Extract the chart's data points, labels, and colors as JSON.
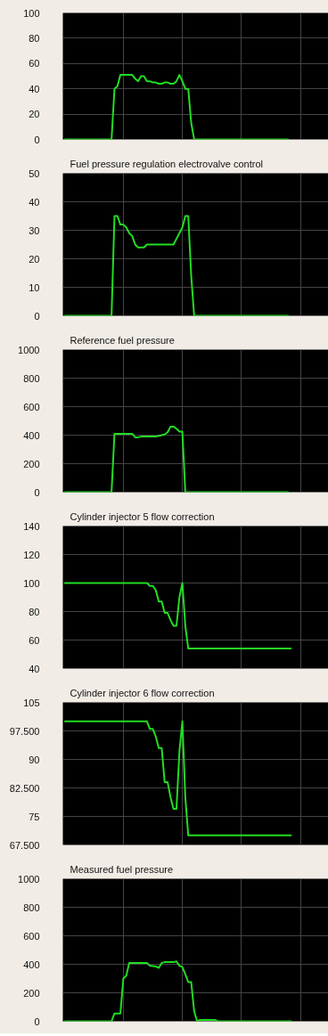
{
  "chart_data": [
    {
      "type": "line",
      "categories": [
        null,
        null,
        null,
        null,
        null,
        null,
        null,
        null,
        null,
        null,
        null,
        null,
        null,
        null,
        null,
        null,
        null,
        null,
        null,
        null,
        null,
        null,
        null,
        null,
        null,
        null,
        null,
        null,
        null,
        null,
        null,
        null,
        null,
        null,
        null,
        null,
        null,
        null,
        null,
        null,
        null,
        null,
        null,
        null,
        null,
        null,
        null,
        null,
        null,
        null,
        null,
        null,
        null,
        null,
        null,
        null,
        null,
        null,
        null,
        null,
        null,
        null,
        null,
        null,
        null,
        null,
        null,
        null,
        null,
        null,
        null,
        null,
        null,
        null,
        null,
        null,
        null,
        null,
        null,
        null,
        null,
        null,
        null,
        null,
        null,
        null,
        null,
        null,
        null,
        null
      ],
      "series": [
        {
          "color": "#22dd22",
          "values": [
            0,
            0,
            0,
            0,
            0,
            0,
            0,
            0,
            0,
            0,
            0,
            0,
            0,
            0,
            0,
            0,
            0,
            40,
            42,
            51,
            51,
            51,
            51,
            51,
            48,
            46,
            50,
            50,
            46,
            46,
            45,
            45,
            44,
            44,
            45,
            45,
            44,
            44,
            46,
            51,
            46,
            40,
            40,
            13,
            0,
            0,
            0,
            0,
            0,
            0,
            0,
            0,
            0,
            0,
            0,
            0,
            0,
            0,
            0,
            0,
            0,
            0,
            0,
            0,
            0,
            0,
            0,
            0,
            0,
            0,
            0,
            0,
            0,
            0,
            0,
            0,
            0,
            null,
            null,
            null,
            null,
            null,
            null,
            null,
            null,
            null,
            null,
            null,
            null,
            null
          ]
        }
      ],
      "ylim": [
        0,
        100
      ],
      "yticks": [
        0,
        20,
        40,
        60,
        80,
        100
      ],
      "grid": true,
      "tick_labels": "y",
      "marker": "none",
      "line_style": "solid"
    },
    {
      "type": "line",
      "title": "Fuel pressure regulation electrovalve control",
      "categories": [
        null,
        null,
        null,
        null,
        null,
        null,
        null,
        null,
        null,
        null,
        null,
        null,
        null,
        null,
        null,
        null,
        null,
        null,
        null,
        null,
        null,
        null,
        null,
        null,
        null,
        null,
        null,
        null,
        null,
        null,
        null,
        null,
        null,
        null,
        null,
        null,
        null,
        null,
        null,
        null,
        null,
        null,
        null,
        null,
        null,
        null,
        null,
        null,
        null,
        null,
        null,
        null,
        null,
        null,
        null,
        null,
        null,
        null,
        null,
        null,
        null,
        null,
        null,
        null,
        null,
        null,
        null,
        null,
        null,
        null,
        null,
        null,
        null,
        null,
        null,
        null,
        null,
        null,
        null,
        null,
        null,
        null,
        null,
        null,
        null,
        null,
        null,
        null,
        null,
        null
      ],
      "series": [
        {
          "color": "#22dd22",
          "values": [
            0,
            0,
            0,
            0,
            0,
            0,
            0,
            0,
            0,
            0,
            0,
            0,
            0,
            0,
            0,
            0,
            0,
            35,
            35,
            32,
            32,
            31,
            29,
            28,
            25,
            24,
            24,
            24,
            25,
            25,
            25,
            25,
            25,
            25,
            25,
            25,
            25,
            25,
            27,
            29,
            31,
            35,
            35,
            14,
            0,
            0,
            0,
            0,
            0,
            0,
            0,
            0,
            0,
            0,
            0,
            0,
            0,
            0,
            0,
            0,
            0,
            0,
            0,
            0,
            0,
            0,
            0,
            0,
            0,
            0,
            0,
            0,
            0,
            0,
            0,
            0,
            0,
            null,
            null,
            null,
            null,
            null,
            null,
            null,
            null,
            null,
            null,
            null,
            null,
            null
          ]
        }
      ],
      "ylim": [
        0,
        50
      ],
      "yticks": [
        0,
        10,
        20,
        30,
        40,
        50
      ],
      "grid": true,
      "tick_labels": "y",
      "marker": "none",
      "line_style": "solid"
    },
    {
      "type": "line",
      "title": "Reference fuel pressure",
      "categories": [
        null,
        null,
        null,
        null,
        null,
        null,
        null,
        null,
        null,
        null,
        null,
        null,
        null,
        null,
        null,
        null,
        null,
        null,
        null,
        null,
        null,
        null,
        null,
        null,
        null,
        null,
        null,
        null,
        null,
        null,
        null,
        null,
        null,
        null,
        null,
        null,
        null,
        null,
        null,
        null,
        null,
        null,
        null,
        null,
        null,
        null,
        null,
        null,
        null,
        null,
        null,
        null,
        null,
        null,
        null,
        null,
        null,
        null,
        null,
        null,
        null,
        null,
        null,
        null,
        null,
        null,
        null,
        null,
        null,
        null,
        null,
        null,
        null,
        null,
        null,
        null,
        null,
        null,
        null,
        null,
        null,
        null,
        null,
        null,
        null,
        null,
        null,
        null,
        null,
        null
      ],
      "series": [
        {
          "color": "#22dd22",
          "values": [
            0,
            0,
            0,
            0,
            0,
            0,
            0,
            0,
            0,
            0,
            0,
            0,
            0,
            0,
            0,
            0,
            0,
            410,
            410,
            410,
            410,
            410,
            410,
            410,
            385,
            385,
            390,
            390,
            390,
            390,
            390,
            390,
            395,
            400,
            405,
            420,
            460,
            460,
            445,
            425,
            425,
            0,
            0,
            0,
            0,
            0,
            0,
            0,
            0,
            0,
            0,
            0,
            0,
            0,
            0,
            0,
            0,
            0,
            0,
            0,
            0,
            0,
            0,
            0,
            0,
            0,
            0,
            0,
            0,
            0,
            0,
            0,
            0,
            0,
            0,
            0,
            0,
            null,
            null,
            null,
            null,
            null,
            null,
            null,
            null,
            null,
            null,
            null,
            null,
            null
          ]
        }
      ],
      "ylim": [
        0,
        1000
      ],
      "yticks": [
        0,
        200,
        400,
        600,
        800,
        1000
      ],
      "grid": true,
      "tick_labels": "y",
      "marker": "none",
      "line_style": "solid"
    },
    {
      "type": "line",
      "title": "Cylinder injector 5 flow correction",
      "categories": [
        null,
        null,
        null,
        null,
        null,
        null,
        null,
        null,
        null,
        null,
        null,
        null,
        null,
        null,
        null,
        null,
        null,
        null,
        null,
        null,
        null,
        null,
        null,
        null,
        null,
        null,
        null,
        null,
        null,
        null,
        null,
        null,
        null,
        null,
        null,
        null,
        null,
        null,
        null,
        null,
        null,
        null,
        null,
        null,
        null,
        null,
        null,
        null,
        null,
        null,
        null,
        null,
        null,
        null,
        null,
        null,
        null,
        null,
        null,
        null,
        null,
        null,
        null,
        null,
        null,
        null,
        null,
        null,
        null,
        null,
        null,
        null,
        null,
        null,
        null,
        null,
        null,
        null,
        null,
        null,
        null,
        null,
        null,
        null,
        null,
        null,
        null,
        null,
        null,
        null
      ],
      "series": [
        {
          "color": "#22dd22",
          "values": [
            100,
            100,
            100,
            100,
            100,
            100,
            100,
            100,
            100,
            100,
            100,
            100,
            100,
            100,
            100,
            100,
            100,
            100,
            100,
            100,
            100,
            100,
            100,
            100,
            100,
            100,
            100,
            100,
            100,
            98,
            98,
            95,
            87,
            87,
            79,
            79,
            74,
            70,
            70,
            90,
            100,
            70,
            54,
            54,
            54,
            54,
            54,
            54,
            54,
            54,
            54,
            54,
            54,
            54,
            54,
            54,
            54,
            54,
            54,
            54,
            54,
            54,
            54,
            54,
            54,
            54,
            54,
            54,
            54,
            54,
            54,
            54,
            54,
            54,
            54,
            54,
            54,
            54,
            null,
            null,
            null,
            null,
            null,
            null,
            null,
            null,
            null,
            null,
            null,
            null
          ]
        }
      ],
      "ylim": [
        40,
        140
      ],
      "yticks": [
        40,
        60,
        80,
        100,
        120,
        140
      ],
      "grid": true,
      "tick_labels": "y",
      "marker": "none",
      "line_style": "solid"
    },
    {
      "type": "line",
      "title": "Cylinder injector 6 flow correction",
      "categories": [
        null,
        null,
        null,
        null,
        null,
        null,
        null,
        null,
        null,
        null,
        null,
        null,
        null,
        null,
        null,
        null,
        null,
        null,
        null,
        null,
        null,
        null,
        null,
        null,
        null,
        null,
        null,
        null,
        null,
        null,
        null,
        null,
        null,
        null,
        null,
        null,
        null,
        null,
        null,
        null,
        null,
        null,
        null,
        null,
        null,
        null,
        null,
        null,
        null,
        null,
        null,
        null,
        null,
        null,
        null,
        null,
        null,
        null,
        null,
        null,
        null,
        null,
        null,
        null,
        null,
        null,
        null,
        null,
        null,
        null,
        null,
        null,
        null,
        null,
        null,
        null,
        null,
        null,
        null,
        null,
        null,
        null,
        null,
        null,
        null,
        null,
        null,
        null,
        null,
        null
      ],
      "series": [
        {
          "color": "#22dd22",
          "values": [
            100,
            100,
            100,
            100,
            100,
            100,
            100,
            100,
            100,
            100,
            100,
            100,
            100,
            100,
            100,
            100,
            100,
            100,
            100,
            100,
            100,
            100,
            100,
            100,
            100,
            100,
            100,
            100,
            100,
            98,
            98,
            96,
            93,
            93,
            84,
            84,
            80,
            77,
            77,
            92,
            100,
            80,
            70,
            70,
            70,
            70,
            70,
            70,
            70,
            70,
            70,
            70,
            70,
            70,
            70,
            70,
            70,
            70,
            70,
            70,
            70,
            70,
            70,
            70,
            70,
            70,
            70,
            70,
            70,
            70,
            70,
            70,
            70,
            70,
            70,
            70,
            70,
            70,
            null,
            null,
            null,
            null,
            null,
            null,
            null,
            null,
            null,
            null,
            null,
            null
          ]
        }
      ],
      "ylim": [
        67.5,
        105
      ],
      "yticks": [
        {
          "value": 67.5,
          "label": "67.500"
        },
        75,
        {
          "value": 82.5,
          "label": "82.500"
        },
        90,
        {
          "value": 97.5,
          "label": "97.500"
        },
        105
      ],
      "grid": true,
      "tick_labels": "y",
      "marker": "none",
      "line_style": "solid"
    },
    {
      "type": "line",
      "title": "Measured fuel pressure",
      "categories": [
        null,
        null,
        null,
        null,
        null,
        null,
        null,
        null,
        null,
        null,
        null,
        null,
        null,
        null,
        null,
        null,
        null,
        null,
        null,
        null,
        null,
        null,
        null,
        null,
        null,
        null,
        null,
        null,
        null,
        null,
        null,
        null,
        null,
        null,
        null,
        null,
        null,
        null,
        null,
        null,
        null,
        null,
        null,
        null,
        null,
        null,
        null,
        null,
        null,
        null,
        null,
        null,
        null,
        null,
        null,
        null,
        null,
        null,
        null,
        null,
        null,
        null,
        null,
        null,
        null,
        null,
        null,
        null,
        null,
        null,
        null,
        null,
        null,
        null,
        null,
        null,
        null,
        null,
        null,
        null,
        null,
        null,
        null,
        null,
        null,
        null,
        null,
        null,
        null,
        null
      ],
      "series": [
        {
          "color": "#22dd22",
          "values": [
            0,
            0,
            0,
            0,
            0,
            0,
            0,
            0,
            0,
            0,
            0,
            0,
            0,
            0,
            0,
            0,
            0,
            55,
            55,
            55,
            300,
            320,
            410,
            410,
            410,
            410,
            410,
            410,
            410,
            390,
            388,
            385,
            375,
            410,
            415,
            415,
            415,
            415,
            420,
            390,
            380,
            330,
            275,
            275,
            70,
            0,
            10,
            10,
            10,
            10,
            10,
            10,
            0,
            0,
            0,
            0,
            0,
            0,
            0,
            0,
            0,
            0,
            0,
            0,
            0,
            0,
            0,
            0,
            0,
            0,
            0,
            0,
            0,
            0,
            0,
            0,
            0,
            0,
            null,
            null,
            null,
            null,
            null,
            null,
            null,
            null,
            null,
            null,
            null,
            null
          ]
        }
      ],
      "ylim": [
        0,
        1000
      ],
      "yticks": [
        0,
        200,
        400,
        600,
        800,
        1000
      ],
      "grid": true,
      "tick_labels": "y",
      "marker": "none",
      "line_style": "solid"
    }
  ]
}
